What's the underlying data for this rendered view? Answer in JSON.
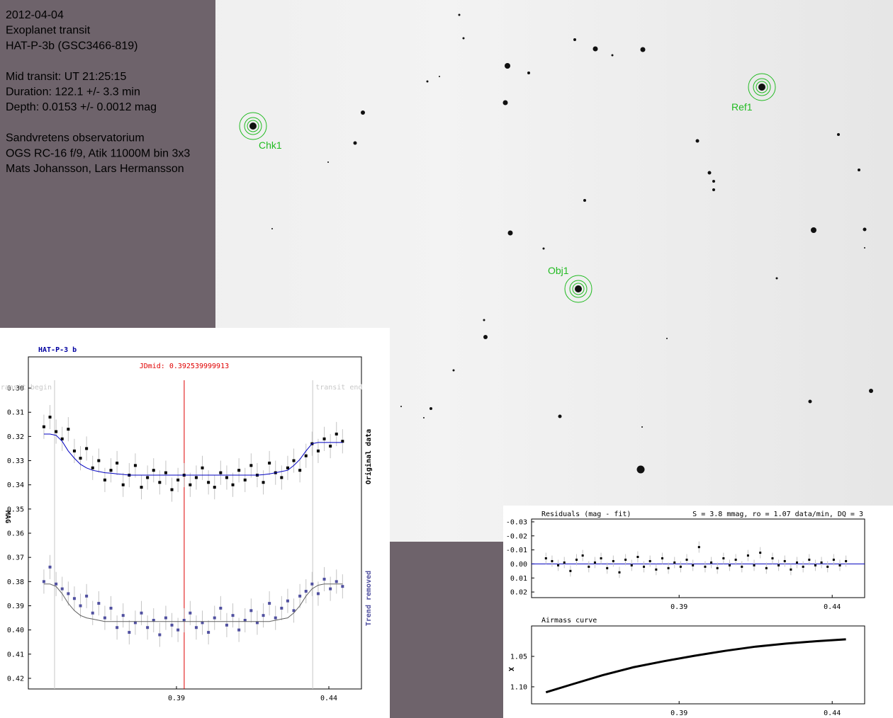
{
  "info": {
    "blocks": [
      [
        "2012-04-04",
        "Exoplanet transit",
        "HAT-P-3b (GSC3466-819)"
      ],
      [
        "Mid transit: UT 21:25:15",
        "Duration: 122.1 +/- 3.3 min",
        "Depth: 0.0153 +/- 0.0012 mag"
      ],
      [
        "Sandvretens observatorium",
        "OGS RC-16 f/9, Atik 11000M bin 3x3",
        "Mats Johansson, Lars Hermansson"
      ]
    ]
  },
  "field": {
    "apertures": [
      {
        "label": "Chk1"
      },
      {
        "label": "Ref1"
      },
      {
        "label": "Obj1"
      }
    ]
  },
  "chart_data": [
    {
      "type": "scatter",
      "title": "HAT-P-3 b",
      "ylabel": "MAG",
      "xlim": [
        0.3414,
        0.4507
      ],
      "ylim": [
        0.4244,
        0.2871
      ],
      "xticks": [
        0.39,
        0.44
      ],
      "yticks": [
        {
          "value": 0.3,
          "label": "0.30"
        },
        0.31,
        0.32,
        0.33,
        0.34,
        0.35,
        0.36,
        0.37,
        0.38,
        0.39,
        {
          "value": 0.4,
          "label": "0.40"
        },
        0.41,
        0.42
      ],
      "markers": [
        {
          "label": "JDmid: 0.392539999913",
          "x": 0.39254,
          "color": "#e00000"
        },
        {
          "label": "transit begin",
          "x": 0.35,
          "color": "#c8c8c8"
        },
        {
          "label": "transit end",
          "x": 0.4347,
          "color": "#c8c8c8"
        }
      ],
      "x": [
        0.3465,
        0.3485,
        0.3505,
        0.3525,
        0.3545,
        0.3565,
        0.3585,
        0.3605,
        0.3625,
        0.3645,
        0.3665,
        0.3685,
        0.3705,
        0.3725,
        0.3745,
        0.3765,
        0.3785,
        0.3805,
        0.3825,
        0.3845,
        0.3865,
        0.3885,
        0.3905,
        0.3925,
        0.3945,
        0.3965,
        0.3985,
        0.4005,
        0.4025,
        0.4045,
        0.4065,
        0.4085,
        0.4105,
        0.4125,
        0.4145,
        0.4165,
        0.4185,
        0.4205,
        0.4225,
        0.4245,
        0.4265,
        0.4285,
        0.4305,
        0.4325,
        0.4345,
        0.4365,
        0.4385,
        0.4405,
        0.4425,
        0.4445
      ],
      "series": [
        {
          "name": "Original data",
          "color": "#000000",
          "error": 0.005,
          "values": [
            0.316,
            0.312,
            0.318,
            0.321,
            0.317,
            0.326,
            0.329,
            0.325,
            0.333,
            0.33,
            0.338,
            0.334,
            0.331,
            0.34,
            0.336,
            0.332,
            0.341,
            0.337,
            0.334,
            0.339,
            0.335,
            0.342,
            0.338,
            0.336,
            0.34,
            0.337,
            0.333,
            0.339,
            0.341,
            0.335,
            0.337,
            0.34,
            0.334,
            0.338,
            0.332,
            0.336,
            0.339,
            0.331,
            0.335,
            0.337,
            0.333,
            0.33,
            0.334,
            0.328,
            0.323,
            0.326,
            0.321,
            0.324,
            0.319,
            0.322
          ]
        },
        {
          "color": "#0000c0",
          "style": "line",
          "values": [
            0.319,
            0.319,
            0.3195,
            0.322,
            0.326,
            0.329,
            0.3315,
            0.333,
            0.334,
            0.3345,
            0.335,
            0.3352,
            0.3355,
            0.3357,
            0.336,
            0.336,
            0.336,
            0.336,
            0.336,
            0.336,
            0.336,
            0.336,
            0.336,
            0.336,
            0.336,
            0.336,
            0.336,
            0.336,
            0.336,
            0.336,
            0.336,
            0.336,
            0.336,
            0.336,
            0.336,
            0.336,
            0.3358,
            0.3355,
            0.335,
            0.3345,
            0.334,
            0.332,
            0.3295,
            0.326,
            0.323,
            0.3225,
            0.3225,
            0.3225,
            0.3225,
            0.3225
          ]
        },
        {
          "name": "Trend removed",
          "color": "#5050a0",
          "error": 0.005,
          "values": [
            0.38,
            0.374,
            0.381,
            0.383,
            0.385,
            0.387,
            0.39,
            0.386,
            0.393,
            0.389,
            0.395,
            0.391,
            0.399,
            0.394,
            0.401,
            0.397,
            0.393,
            0.399,
            0.396,
            0.402,
            0.395,
            0.398,
            0.4,
            0.396,
            0.393,
            0.399,
            0.397,
            0.401,
            0.395,
            0.391,
            0.398,
            0.394,
            0.4,
            0.396,
            0.392,
            0.397,
            0.394,
            0.389,
            0.395,
            0.391,
            0.388,
            0.392,
            0.386,
            0.384,
            0.381,
            0.385,
            0.379,
            0.383,
            0.38,
            0.382
          ]
        },
        {
          "color": "#606060",
          "style": "line",
          "values": [
            0.381,
            0.381,
            0.382,
            0.385,
            0.389,
            0.392,
            0.394,
            0.395,
            0.3955,
            0.396,
            0.3965,
            0.3965,
            0.3965,
            0.3965,
            0.3965,
            0.3965,
            0.3965,
            0.3965,
            0.3965,
            0.3965,
            0.3965,
            0.3965,
            0.3965,
            0.3965,
            0.3965,
            0.3965,
            0.3965,
            0.3965,
            0.3965,
            0.3965,
            0.3965,
            0.3965,
            0.3965,
            0.3965,
            0.3965,
            0.3965,
            0.3965,
            0.3965,
            0.396,
            0.3955,
            0.395,
            0.393,
            0.39,
            0.386,
            0.383,
            0.3815,
            0.381,
            0.381,
            0.381,
            0.381
          ]
        }
      ]
    },
    {
      "type": "scatter",
      "title": "Residuals (mag - fit)",
      "subtitle": "S = 3.8 mmag, ro = 1.07 data/min, DQ = 3",
      "xlim": [
        0.3418,
        0.4506
      ],
      "ylim": [
        0.024,
        -0.032
      ],
      "xticks": [
        0.39,
        0.44
      ],
      "yticks": [
        -0.03,
        -0.02,
        -0.01,
        {
          "value": 0,
          "label": "0.00"
        },
        0.01,
        0.02
      ],
      "zero_line_color": "#0000c0",
      "x": [
        0.3465,
        0.3485,
        0.3505,
        0.3525,
        0.3545,
        0.3565,
        0.3585,
        0.3605,
        0.3625,
        0.3645,
        0.3665,
        0.3685,
        0.3705,
        0.3725,
        0.3745,
        0.3765,
        0.3785,
        0.3805,
        0.3825,
        0.3845,
        0.3865,
        0.3885,
        0.3905,
        0.3925,
        0.3945,
        0.3965,
        0.3985,
        0.4005,
        0.4025,
        0.4045,
        0.4065,
        0.4085,
        0.4105,
        0.4125,
        0.4145,
        0.4165,
        0.4185,
        0.4205,
        0.4225,
        0.4245,
        0.4265,
        0.4285,
        0.4305,
        0.4325,
        0.4345,
        0.4365,
        0.4385,
        0.4405,
        0.4425,
        0.4445
      ],
      "series": [
        {
          "color": "#000000",
          "error": 0.004,
          "values": [
            -0.004,
            -0.002,
            0.001,
            -0.001,
            0.005,
            -0.003,
            -0.006,
            0.002,
            -0.001,
            -0.004,
            0.003,
            -0.002,
            0.006,
            -0.003,
            0.001,
            -0.005,
            0.002,
            -0.002,
            0.004,
            -0.004,
            0.003,
            -0.001,
            0.002,
            -0.003,
            0.001,
            -0.012,
            0.002,
            -0.001,
            0.003,
            -0.004,
            0.001,
            -0.003,
            0.002,
            -0.006,
            0.001,
            -0.008,
            0.003,
            -0.004,
            0.001,
            -0.002,
            0.004,
            -0.001,
            0.002,
            -0.003,
            0.001,
            -0.001,
            0.002,
            -0.003,
            0.001,
            -0.002
          ]
        }
      ]
    },
    {
      "type": "line",
      "title": "Airmass curve",
      "ylabel": "X",
      "xlim": [
        0.3418,
        0.4506
      ],
      "ylim": [
        1.128,
        1.0
      ],
      "xticks": [
        0.39,
        0.44
      ],
      "yticks": [
        1.05,
        {
          "value": 1.1,
          "label": "1.10"
        }
      ],
      "x": [
        0.3465,
        0.355,
        0.365,
        0.375,
        0.385,
        0.395,
        0.405,
        0.415,
        0.425,
        0.435,
        0.4445
      ],
      "series": [
        {
          "color": "#000000",
          "style": "line",
          "values": [
            1.109,
            1.096,
            1.081,
            1.068,
            1.058,
            1.049,
            1.041,
            1.034,
            1.029,
            1.025,
            1.022
          ]
        }
      ]
    }
  ]
}
